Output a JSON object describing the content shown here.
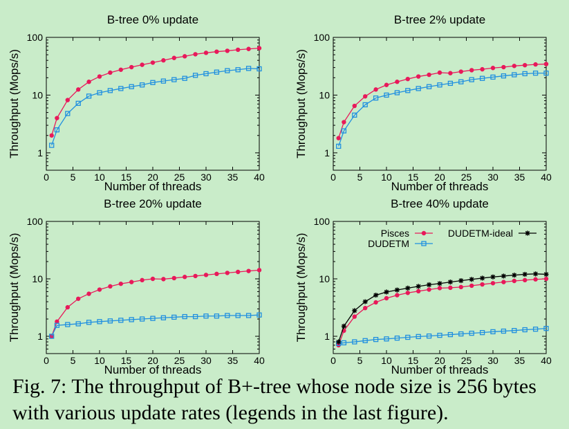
{
  "caption": "Fig. 7: The throughput of B+-tree whose node size is 256 bytes with various update rates (legends in the last figure).",
  "colors": {
    "Pisces": "#e8195a",
    "DUDETM": "#1f8fe0",
    "DUDETM-ideal": "#000000",
    "background": "#c9ecc9"
  },
  "chart_data": [
    {
      "type": "line",
      "title": "B-tree 0% update",
      "xlabel": "Number of threads",
      "ylabel": "Throughput (Mops/s)",
      "xlim": [
        0,
        40
      ],
      "ylim": [
        0.5,
        100
      ],
      "yscale": "log",
      "xticks": [
        "0",
        "5",
        "10",
        "15",
        "20",
        "25",
        "30",
        "35",
        "40"
      ],
      "yticks": [
        "1",
        "10",
        "100"
      ],
      "x": [
        1,
        2,
        4,
        6,
        8,
        10,
        12,
        14,
        16,
        18,
        20,
        22,
        24,
        26,
        28,
        30,
        32,
        34,
        36,
        38,
        40
      ],
      "series": [
        {
          "name": "Pisces",
          "values": [
            2.0,
            4.0,
            8.2,
            12.5,
            17,
            21,
            24.5,
            27.5,
            30.5,
            33.5,
            36.5,
            40,
            44,
            47,
            51,
            54,
            56.5,
            58.5,
            61,
            63,
            65
          ]
        },
        {
          "name": "DUDETM",
          "values": [
            1.35,
            2.5,
            4.8,
            7.2,
            9.6,
            11,
            12,
            13,
            14,
            15,
            16.5,
            17.5,
            18.5,
            19.5,
            22,
            23.5,
            25,
            26.5,
            27.5,
            29,
            28.5
          ]
        }
      ]
    },
    {
      "type": "line",
      "title": "B-tree 2% update",
      "xlabel": "Number of threads",
      "ylabel": "Throughput (Mops/s)",
      "xlim": [
        0,
        40
      ],
      "ylim": [
        0.5,
        100
      ],
      "yscale": "log",
      "xticks": [
        "0",
        "5",
        "10",
        "15",
        "20",
        "25",
        "30",
        "35",
        "40"
      ],
      "yticks": [
        "1",
        "10",
        "100"
      ],
      "x": [
        1,
        2,
        4,
        6,
        8,
        10,
        12,
        14,
        16,
        18,
        20,
        22,
        24,
        26,
        28,
        30,
        32,
        34,
        36,
        38,
        40
      ],
      "series": [
        {
          "name": "Pisces",
          "values": [
            1.8,
            3.4,
            6.5,
            9.5,
            12.5,
            15,
            17,
            19,
            21,
            22.5,
            24.5,
            24,
            25.5,
            27,
            28,
            29.5,
            30.5,
            32,
            33,
            34,
            34.5
          ]
        },
        {
          "name": "DUDETM",
          "values": [
            1.3,
            2.4,
            4.5,
            6.8,
            8.9,
            10,
            11,
            12,
            13,
            14,
            15,
            16,
            17,
            18.5,
            19.5,
            20.5,
            21.5,
            22.5,
            23.5,
            24,
            24
          ]
        }
      ]
    },
    {
      "type": "line",
      "title": "B-tree 20% update",
      "xlabel": "Number of threads",
      "ylabel": "Throughput (Mops/s)",
      "xlim": [
        0,
        40
      ],
      "ylim": [
        0.5,
        100
      ],
      "yscale": "log",
      "xticks": [
        "0",
        "5",
        "10",
        "15",
        "20",
        "25",
        "30",
        "35",
        "40"
      ],
      "yticks": [
        "1",
        "10",
        "100"
      ],
      "x": [
        1,
        2,
        4,
        6,
        8,
        10,
        12,
        14,
        16,
        18,
        20,
        22,
        24,
        26,
        28,
        30,
        32,
        34,
        36,
        38,
        40
      ],
      "series": [
        {
          "name": "Pisces",
          "values": [
            1.0,
            1.8,
            3.2,
            4.5,
            5.5,
            6.5,
            7.4,
            8.2,
            8.8,
            9.5,
            10.0,
            9.9,
            10.3,
            10.8,
            11.2,
            11.7,
            12.2,
            12.7,
            13.2,
            13.7,
            14.2
          ]
        },
        {
          "name": "DUDETM",
          "values": [
            1.0,
            1.55,
            1.6,
            1.65,
            1.75,
            1.8,
            1.85,
            1.9,
            1.95,
            2.0,
            2.05,
            2.1,
            2.15,
            2.2,
            2.2,
            2.25,
            2.25,
            2.3,
            2.3,
            2.3,
            2.35
          ]
        }
      ]
    },
    {
      "type": "line",
      "title": "B-tree 40% update",
      "xlabel": "Number of threads",
      "ylabel": "Throughput (Mops/s)",
      "xlim": [
        0,
        40
      ],
      "ylim": [
        0.5,
        100
      ],
      "yscale": "log",
      "xticks": [
        "0",
        "5",
        "10",
        "15",
        "20",
        "25",
        "30",
        "35",
        "40"
      ],
      "yticks": [
        "1",
        "10",
        "100"
      ],
      "legend": "top",
      "x": [
        1,
        2,
        4,
        6,
        8,
        10,
        12,
        14,
        16,
        18,
        20,
        22,
        24,
        26,
        28,
        30,
        32,
        34,
        36,
        38,
        40
      ],
      "series": [
        {
          "name": "Pisces",
          "values": [
            0.7,
            1.25,
            2.2,
            3.1,
            3.9,
            4.6,
            5.2,
            5.7,
            6.1,
            6.5,
            6.9,
            7.0,
            7.2,
            7.6,
            8.0,
            8.4,
            8.8,
            9.2,
            9.5,
            9.8,
            10.0
          ]
        },
        {
          "name": "DUDETM",
          "values": [
            0.75,
            0.77,
            0.8,
            0.84,
            0.88,
            0.9,
            0.93,
            0.96,
            0.99,
            1.01,
            1.04,
            1.07,
            1.1,
            1.13,
            1.16,
            1.2,
            1.23,
            1.26,
            1.3,
            1.33,
            1.37
          ]
        },
        {
          "name": "DUDETM-ideal",
          "values": [
            0.8,
            1.5,
            2.8,
            4.0,
            5.2,
            5.9,
            6.4,
            6.9,
            7.4,
            7.9,
            8.3,
            8.8,
            9.3,
            9.8,
            10.3,
            10.8,
            11.2,
            11.6,
            12.0,
            12.2,
            12.0
          ]
        }
      ]
    }
  ]
}
